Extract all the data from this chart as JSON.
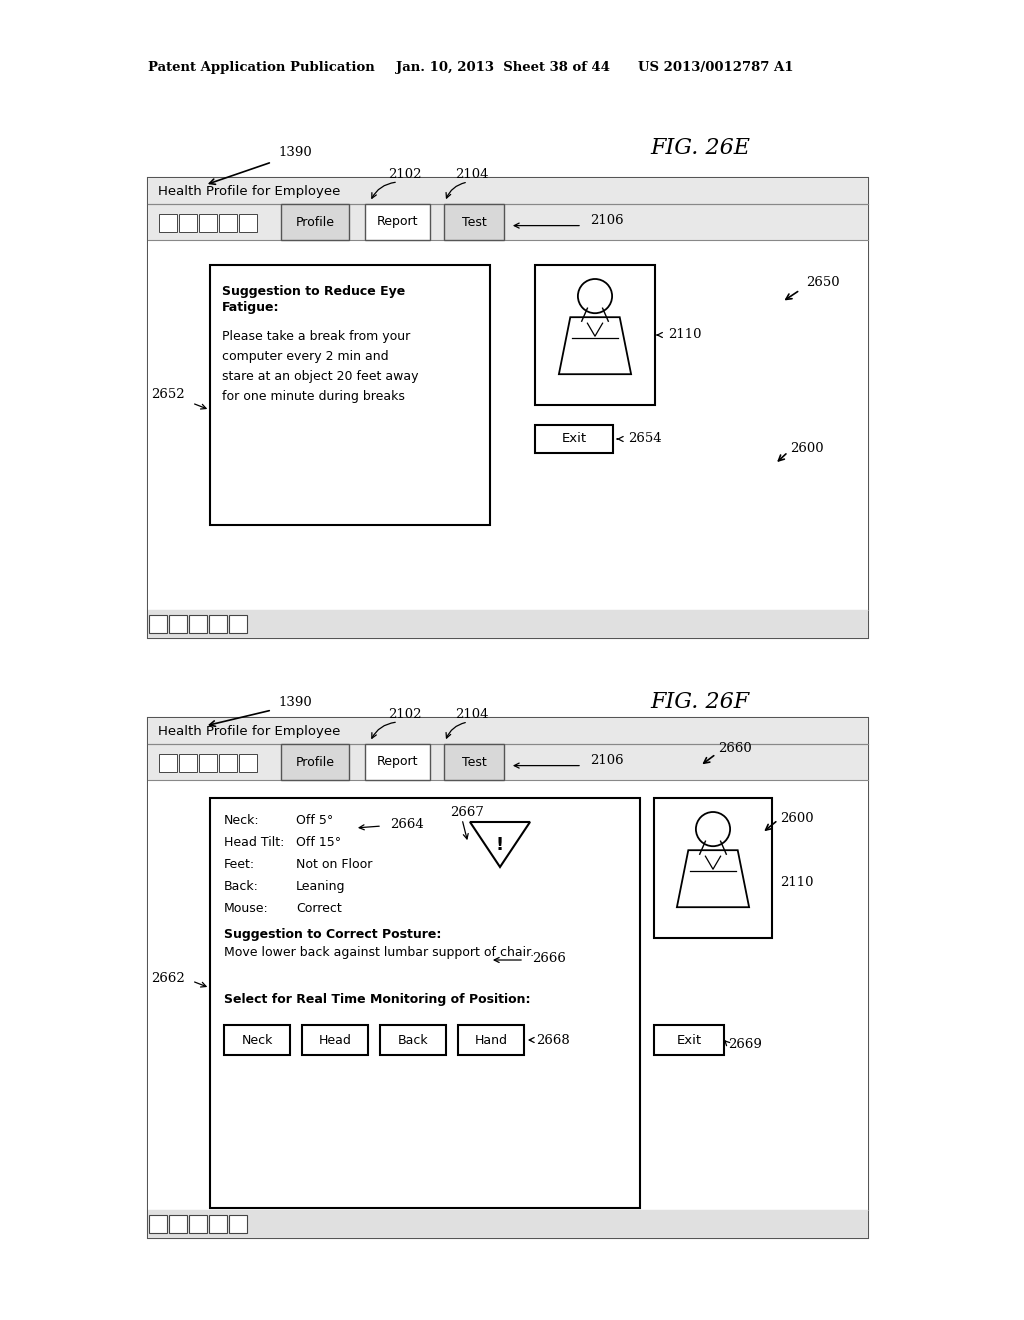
{
  "bg_color": "#ffffff",
  "header_line1": "Patent Application Publication",
  "header_line2": "Jan. 10, 2013  Sheet 38 of 44",
  "header_line3": "US 2013/0012787 A1",
  "fig26e_label": "FIG. 26E",
  "fig26f_label": "FIG. 26F",
  "window_title": "Health Profile for Employee",
  "tab_profile": "Profile",
  "tab_report": "Report",
  "tab_test": "Test",
  "label_1390_1": "1390",
  "label_2102_1": "2102",
  "label_2104_1": "2104",
  "label_2106_1": "2106",
  "label_2650": "2650",
  "label_2652": "2652",
  "label_2110_1": "2110",
  "label_2654": "2654",
  "label_2600_1": "2600",
  "suggestion_title_line1": "Suggestion to Reduce Eye",
  "suggestion_title_line2": "Fatigue:",
  "suggestion_text": "Please take a break from your\ncomputer every 2 min and\nstare at an object 20 feet away\nfor one minute during breaks",
  "exit_btn": "Exit",
  "label_1390_2": "1390",
  "label_2102_2": "2102",
  "label_2104_2": "2104",
  "label_2106_2": "2106",
  "label_2660": "2660",
  "label_2662": "2662",
  "label_2664": "2664",
  "label_2667": "2667",
  "label_2666": "2666",
  "label_2600_2": "2600",
  "label_2110_2": "2110",
  "label_2668": "2668",
  "label_2669": "2669",
  "posture_suggestion_title": "Suggestion to Correct Posture:",
  "posture_suggestion_text": "Move lower back against lumbar support of chair.",
  "monitoring_title": "Select for Real Time Monitoring of Position:",
  "btn_neck": "Neck",
  "btn_head": "Head",
  "btn_back": "Back",
  "btn_hand": "Hand",
  "exit_btn2": "Exit"
}
